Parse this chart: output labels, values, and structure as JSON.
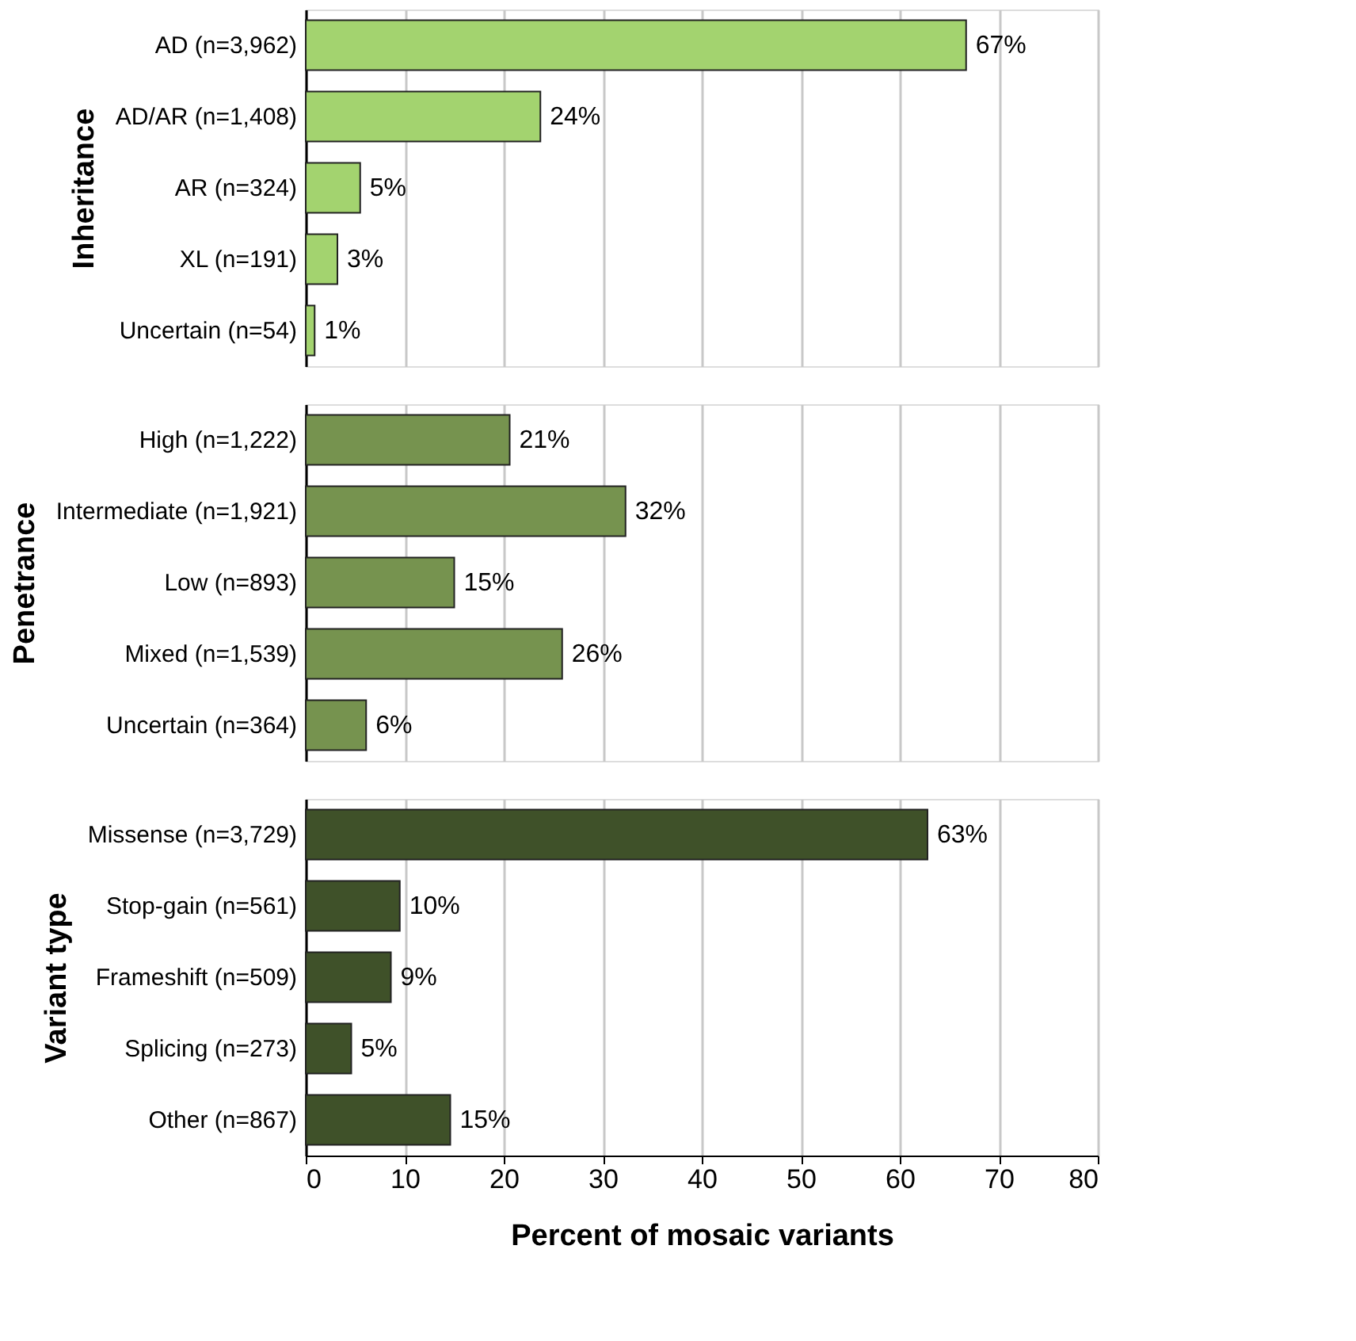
{
  "chart_data": [
    {
      "type": "bar",
      "orientation": "horizontal",
      "ylabel": "Inheritance",
      "categories": [
        "AD (n=3,962)",
        "AD/AR (n=1,408)",
        "AR (n=324)",
        "XL (n=191)",
        "Uncertain (n=54)"
      ],
      "series": [
        {
          "color": "#a3d36f",
          "values": [
            66.7,
            23.7,
            5.5,
            3.2,
            0.9
          ],
          "value_labels": [
            "67%",
            "24%",
            "5%",
            "3%",
            "1%"
          ]
        }
      ],
      "xlim": [
        0,
        80
      ],
      "xticks": [
        0,
        10,
        20,
        30,
        40,
        50,
        60,
        70,
        80
      ],
      "grid": "x",
      "tick_labels": "y"
    },
    {
      "type": "bar",
      "orientation": "horizontal",
      "ylabel": "Penetrance",
      "categories": [
        "High (n=1,222)",
        "Intermediate (n=1,921)",
        "Low (n=893)",
        "Mixed (n=1,539)",
        "Uncertain (n=364)"
      ],
      "series": [
        {
          "color": "#76934f",
          "values": [
            20.6,
            32.3,
            15.0,
            25.9,
            6.1
          ],
          "value_labels": [
            "21%",
            "32%",
            "15%",
            "26%",
            "6%"
          ]
        }
      ],
      "xlim": [
        0,
        80
      ],
      "xticks": [
        0,
        10,
        20,
        30,
        40,
        50,
        60,
        70,
        80
      ],
      "grid": "x",
      "tick_labels": "y"
    },
    {
      "type": "bar",
      "orientation": "horizontal",
      "ylabel": "Variant type",
      "xlabel": "Percent of mosaic variants",
      "categories": [
        "Missense (n=3,729)",
        "Stop-gain (n=561)",
        "Frameshift (n=509)",
        "Splicing (n=273)",
        "Other (n=867)"
      ],
      "series": [
        {
          "color": "#3f5129",
          "values": [
            62.8,
            9.5,
            8.6,
            4.6,
            14.6
          ],
          "value_labels": [
            "63%",
            "10%",
            "9%",
            "5%",
            "15%"
          ]
        }
      ],
      "xlim": [
        0,
        80
      ],
      "xticks": [
        0,
        10,
        20,
        30,
        40,
        50,
        60,
        70,
        80
      ],
      "grid": "x"
    }
  ]
}
